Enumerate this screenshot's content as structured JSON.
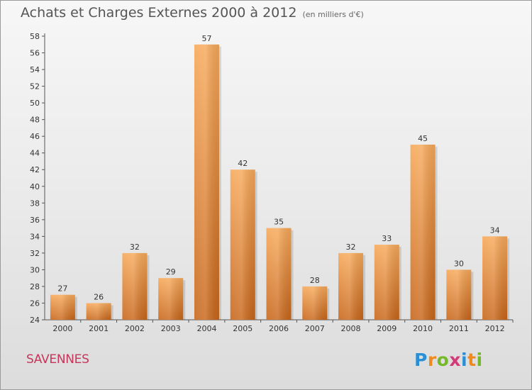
{
  "header": {
    "title": "Achats et Charges Externes 2000 à 2012",
    "unit": "(en milliers d'€)"
  },
  "place": "SAVENNES",
  "logo": {
    "letters": [
      "P",
      "r",
      "o",
      "x",
      "i",
      "t",
      "i"
    ],
    "colors": [
      "#2a8fd6",
      "#ef8a1f",
      "#76b82a",
      "#d23a78",
      "#2a8fd6",
      "#ef8a1f",
      "#76b82a"
    ]
  },
  "colors": {
    "bar_top": "#f7a95a",
    "bar_bottom": "#c8661a",
    "axis": "#555555"
  },
  "chart_data": {
    "type": "bar",
    "categories": [
      "2000",
      "2001",
      "2002",
      "2003",
      "2004",
      "2005",
      "2006",
      "2007",
      "2008",
      "2009",
      "2010",
      "2011",
      "2012"
    ],
    "values": [
      27,
      26,
      32,
      29,
      57,
      42,
      35,
      28,
      32,
      33,
      45,
      30,
      34
    ],
    "ylim": [
      24,
      58
    ],
    "yticks": [
      24,
      26,
      28,
      30,
      32,
      34,
      36,
      38,
      40,
      42,
      44,
      46,
      48,
      50,
      52,
      54,
      56,
      58
    ],
    "grid": false,
    "data_labels": true
  }
}
